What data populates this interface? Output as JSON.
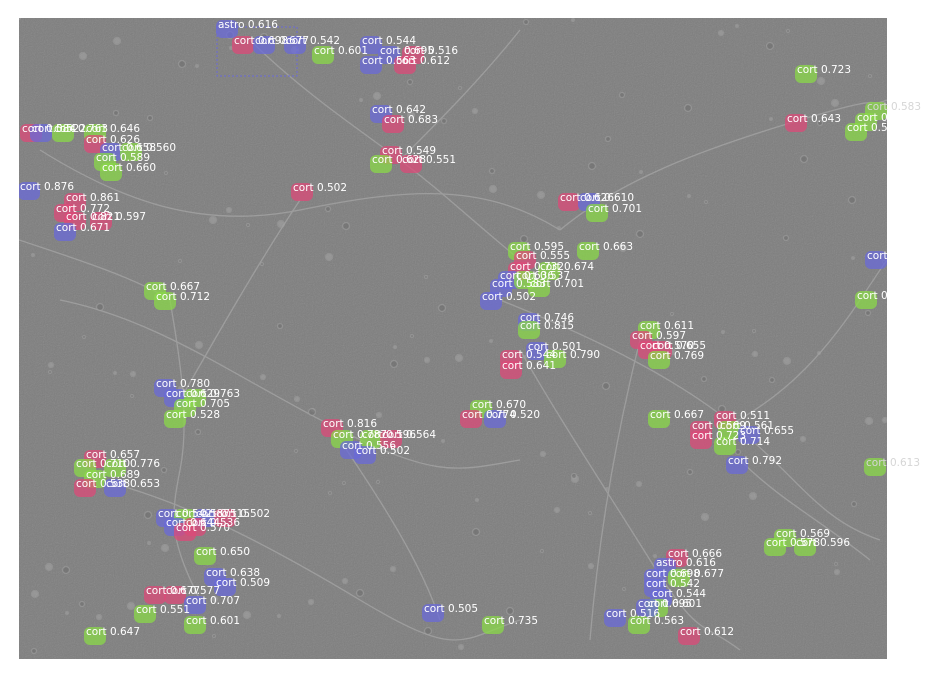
{
  "image": {
    "description_free": true,
    "background_color": "#7d7d7d",
    "filament_color": "#a9a9a9"
  },
  "classes": {
    "cort": {
      "name": "cort",
      "colors": [
        "#dc4a78",
        "#6a6ad8",
        "#8ad848"
      ]
    },
    "astro": {
      "name": "astro",
      "colors": [
        "#6a6ad8"
      ]
    }
  },
  "detections": [
    {
      "cls": "astro",
      "score": "0.616"
    },
    {
      "cls": "cort",
      "score": "0.698"
    },
    {
      "cls": "cort",
      "score": "0.677"
    },
    {
      "cls": "cort",
      "score": "0.542"
    },
    {
      "cls": "cort",
      "score": "0.544"
    },
    {
      "cls": "cort",
      "score": "0.601"
    },
    {
      "cls": "cort",
      "score": "0.695"
    },
    {
      "cls": "cort",
      "score": "0.516"
    },
    {
      "cls": "cort",
      "score": "0.563"
    },
    {
      "cls": "cort",
      "score": "0.612"
    },
    {
      "cls": "cort",
      "score": "0.642"
    },
    {
      "cls": "cort",
      "score": "0.683"
    },
    {
      "cls": "cort",
      "score": "0.549"
    },
    {
      "cls": "cort",
      "score": "0.628"
    },
    {
      "cls": "cort",
      "score": "0.551"
    },
    {
      "cls": "cort",
      "score": "0.502"
    },
    {
      "cls": "cort",
      "score": "0.723"
    },
    {
      "cls": "cort",
      "score": "0.643"
    },
    {
      "cls": "cort",
      "score": "0.583"
    },
    {
      "cls": "cort",
      "score": "0.530"
    },
    {
      "cls": "cort",
      "score": "0.509"
    },
    {
      "cls": "cort",
      "score": "0.543"
    },
    {
      "cls": "cort",
      "score": "0.656"
    },
    {
      "cls": "cort",
      "score": "0.613"
    },
    {
      "cls": "cort",
      "score": "0.584"
    },
    {
      "cls": "cort",
      "score": "0.522"
    },
    {
      "cls": "cort",
      "score": "0.763"
    },
    {
      "cls": "cort",
      "score": "0.646"
    },
    {
      "cls": "cort",
      "score": "0.626"
    },
    {
      "cls": "cort",
      "score": "0.658"
    },
    {
      "cls": "cort",
      "score": "0.560"
    },
    {
      "cls": "cort",
      "score": "0.589"
    },
    {
      "cls": "cort",
      "score": "0.660"
    },
    {
      "cls": "cort",
      "score": "0.876"
    },
    {
      "cls": "cort",
      "score": "0.861"
    },
    {
      "cls": "cort",
      "score": "0.772"
    },
    {
      "cls": "cort",
      "score": "0.821"
    },
    {
      "cls": "cort",
      "score": "0.597"
    },
    {
      "cls": "cort",
      "score": "0.671"
    },
    {
      "cls": "cort",
      "score": "0.626"
    },
    {
      "cls": "cort",
      "score": "0.610"
    },
    {
      "cls": "cort",
      "score": "0.701"
    },
    {
      "cls": "cort",
      "score": "0.595"
    },
    {
      "cls": "cort",
      "score": "0.663"
    },
    {
      "cls": "cort",
      "score": "0.555"
    },
    {
      "cls": "cort",
      "score": "0.732"
    },
    {
      "cls": "cort",
      "score": "0.674"
    },
    {
      "cls": "cort",
      "score": "0.636"
    },
    {
      "cls": "cort",
      "score": "0.537"
    },
    {
      "cls": "cort",
      "score": "0.583"
    },
    {
      "cls": "cort",
      "score": "0.701"
    },
    {
      "cls": "cort",
      "score": "0.502"
    },
    {
      "cls": "cort",
      "score": "0.746"
    },
    {
      "cls": "cort",
      "score": "0.815"
    },
    {
      "cls": "cort",
      "score": "0.667"
    },
    {
      "cls": "cort",
      "score": "0.712"
    },
    {
      "cls": "cort",
      "score": "0.611"
    },
    {
      "cls": "cort",
      "score": "0.597"
    },
    {
      "cls": "cort",
      "score": "0.570"
    },
    {
      "cls": "cort",
      "score": "0.655"
    },
    {
      "cls": "cort",
      "score": "0.769"
    },
    {
      "cls": "cort",
      "score": "0.501"
    },
    {
      "cls": "cort",
      "score": "0.544"
    },
    {
      "cls": "cort",
      "score": "0.790"
    },
    {
      "cls": "cort",
      "score": "0.641"
    },
    {
      "cls": "cort",
      "score": "0.780"
    },
    {
      "cls": "cort",
      "score": "0.629"
    },
    {
      "cls": "cort",
      "score": "0.763"
    },
    {
      "cls": "cort",
      "score": "0.705"
    },
    {
      "cls": "cort",
      "score": "0.528"
    },
    {
      "cls": "cort",
      "score": "0.670"
    },
    {
      "cls": "cort",
      "score": "0.774"
    },
    {
      "cls": "cort",
      "score": "0.520"
    },
    {
      "cls": "cort",
      "score": "0.816"
    },
    {
      "cls": "cort",
      "score": "0.787"
    },
    {
      "cls": "cort",
      "score": "0.596"
    },
    {
      "cls": "cort",
      "score": "0.564"
    },
    {
      "cls": "cort",
      "score": "0.556"
    },
    {
      "cls": "cort",
      "score": "0.502"
    },
    {
      "cls": "cort",
      "score": "0.667"
    },
    {
      "cls": "cort",
      "score": "0.511"
    },
    {
      "cls": "cort",
      "score": "0.569"
    },
    {
      "cls": "cort",
      "score": "0.561"
    },
    {
      "cls": "cort",
      "score": "0.723"
    },
    {
      "cls": "cort",
      "score": "0.655"
    },
    {
      "cls": "cort",
      "score": "0.714"
    },
    {
      "cls": "cort",
      "score": "0.792"
    },
    {
      "cls": "cort",
      "score": "0.657"
    },
    {
      "cls": "cort",
      "score": "0.710"
    },
    {
      "cls": "cort",
      "score": "0.776"
    },
    {
      "cls": "cort",
      "score": "0.689"
    },
    {
      "cls": "cort",
      "score": "0.538"
    },
    {
      "cls": "cort",
      "score": "0.653"
    },
    {
      "cls": "cort",
      "score": "0.542"
    },
    {
      "cls": "cort",
      "score": "0.587"
    },
    {
      "cls": "cort",
      "score": "0.515"
    },
    {
      "cls": "cort",
      "score": "0.502"
    },
    {
      "cls": "cort",
      "score": "0.644"
    },
    {
      "cls": "cort",
      "score": "0.536"
    },
    {
      "cls": "cort",
      "score": "0.570"
    },
    {
      "cls": "cort",
      "score": "0.650"
    },
    {
      "cls": "cort",
      "score": "0.638"
    },
    {
      "cls": "cort",
      "score": "0.509"
    },
    {
      "cls": "cort",
      "score": "0.677"
    },
    {
      "cls": "cort",
      "score": "0.577"
    },
    {
      "cls": "cort",
      "score": "0.551"
    },
    {
      "cls": "cort",
      "score": "0.707"
    },
    {
      "cls": "cort",
      "score": "0.601"
    },
    {
      "cls": "cort",
      "score": "0.647"
    },
    {
      "cls": "cort",
      "score": "0.505"
    },
    {
      "cls": "cort",
      "score": "0.735"
    },
    {
      "cls": "cort",
      "score": "0.569"
    },
    {
      "cls": "cort",
      "score": "0.578"
    },
    {
      "cls": "cort",
      "score": "0.596"
    },
    {
      "cls": "cort",
      "score": "0.666"
    }
  ]
}
